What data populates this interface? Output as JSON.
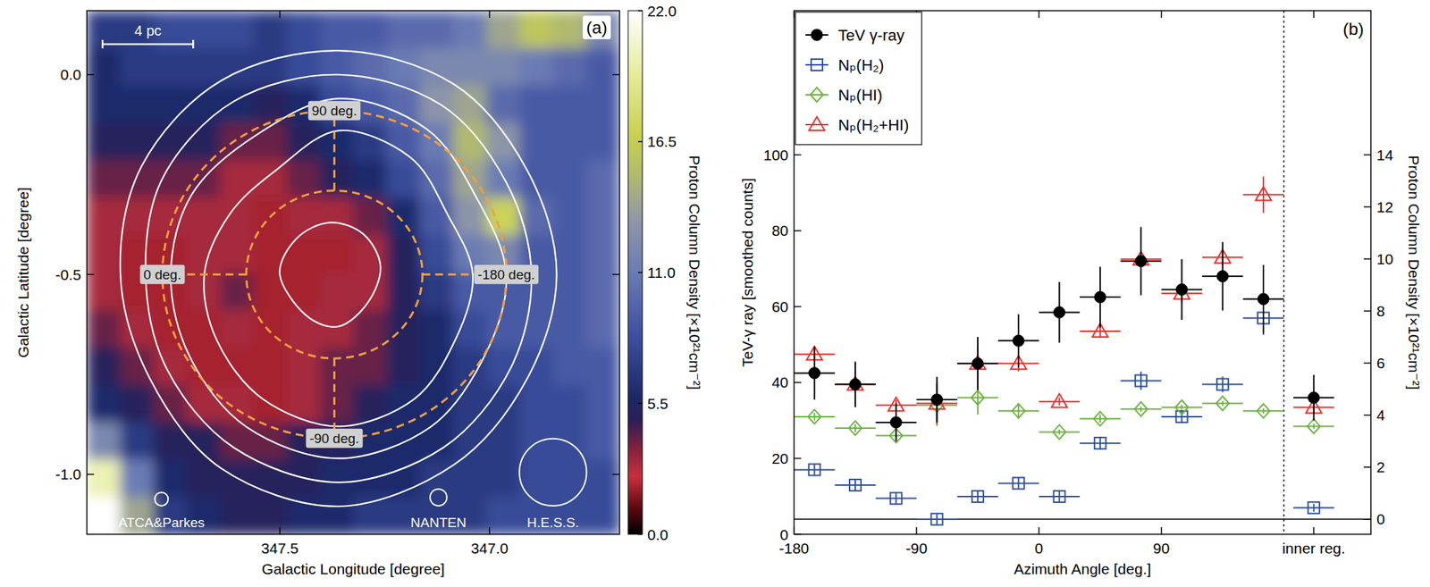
{
  "chart_data": [
    {
      "type": "heatmap",
      "panel_label": "(a)",
      "x_label": "Galactic Longitude [degree]",
      "y_label": "Galactic Latitude [degree]",
      "xlim": [
        347.96,
        346.69
      ],
      "ylim": [
        -1.15,
        0.16
      ],
      "xticks": [
        347.5,
        {
          "value": 347,
          "label": "347.0"
        }
      ],
      "yticks": [
        {
          "value": 0,
          "label": "0.0"
        },
        -0.5,
        {
          "value": -1,
          "label": "-1.0"
        }
      ],
      "cells": [
        [
          7,
          7,
          8,
          8,
          8,
          7,
          8,
          9,
          9,
          10,
          10,
          11,
          14,
          16,
          15,
          12
        ],
        [
          6,
          7,
          7,
          7,
          7,
          7,
          8,
          9,
          10,
          11,
          12,
          12,
          12,
          11,
          10,
          9
        ],
        [
          6,
          6,
          6,
          6,
          6,
          5,
          6,
          8,
          9,
          10,
          13,
          14,
          10,
          9,
          9,
          9
        ],
        [
          5,
          5,
          5,
          5,
          4,
          4,
          5,
          6,
          7,
          9,
          11,
          15,
          13,
          9,
          9,
          9
        ],
        [
          4,
          4,
          4,
          4,
          3,
          3,
          4,
          5,
          6,
          8,
          10,
          14,
          11,
          9,
          9,
          10
        ],
        [
          3,
          3,
          3,
          3,
          3,
          2,
          3,
          3,
          4,
          6,
          9,
          13,
          17,
          10,
          9,
          10
        ],
        [
          3,
          2,
          2,
          3,
          3,
          2,
          2,
          2,
          3,
          5,
          8,
          11,
          12,
          9,
          9,
          10
        ],
        [
          3,
          2,
          2,
          3,
          4,
          2,
          2,
          3,
          3,
          5,
          7,
          9,
          9,
          9,
          9,
          10
        ],
        [
          4,
          3,
          2,
          2,
          3,
          2,
          3,
          3,
          4,
          5,
          6,
          8,
          9,
          9,
          9,
          10
        ],
        [
          5,
          4,
          3,
          2,
          2,
          2,
          3,
          4,
          4,
          5,
          6,
          7,
          8,
          8,
          9,
          9
        ],
        [
          6,
          5,
          4,
          3,
          3,
          2,
          3,
          4,
          5,
          6,
          6,
          7,
          7,
          8,
          8,
          9
        ],
        [
          12,
          7,
          5,
          5,
          4,
          4,
          5,
          5,
          6,
          6,
          6,
          7,
          7,
          8,
          8,
          9
        ],
        [
          20,
          11,
          6,
          5,
          5,
          5,
          5,
          6,
          6,
          6,
          7,
          7,
          7,
          8,
          8,
          8
        ],
        [
          22,
          14,
          7,
          6,
          5,
          5,
          6,
          6,
          7,
          7,
          7,
          7,
          8,
          8,
          8,
          8
        ]
      ],
      "colorbar": {
        "label": "Proton Column Density [×10²¹cm⁻²]",
        "range": [
          0,
          22
        ],
        "ticks": [
          {
            "value": 0,
            "label": "0.0"
          },
          5.5,
          {
            "value": 11,
            "label": "11.0"
          },
          16.5,
          {
            "value": 22,
            "label": "22.0"
          }
        ]
      },
      "contours": [
        {
          "lon": [
            346.84,
            346.91,
            347.085,
            347.36,
            347.64,
            347.83,
            347.88,
            347.81,
            347.64,
            347.36,
            347.085,
            346.91
          ],
          "lat": [
            -0.5,
            -0.24,
            -0.024,
            0.06,
            -0.015,
            -0.23,
            -0.5,
            -0.76,
            -0.985,
            -1.08,
            -0.976,
            -0.76
          ]
        },
        {
          "lon": [
            346.9,
            346.96,
            347.115,
            347.36,
            347.61,
            347.78,
            347.82,
            347.77,
            347.61,
            347.36,
            347.11,
            346.95
          ],
          "lat": [
            -0.5,
            -0.27,
            -0.076,
            0.0,
            -0.067,
            -0.26,
            -0.5,
            -0.735,
            -0.933,
            -1.02,
            -0.933,
            -0.735
          ]
        },
        {
          "lon": [
            346.96,
            347.03,
            347.15,
            347.36,
            347.56,
            347.71,
            347.76,
            347.715,
            347.58,
            347.36,
            347.14,
            347.01
          ],
          "lat": [
            -0.5,
            -0.31,
            -0.136,
            -0.06,
            -0.154,
            -0.3,
            -0.5,
            -0.705,
            -0.881,
            -0.96,
            -0.881,
            -0.7
          ]
        },
        {
          "lon": [
            347.04,
            347.1,
            347.19,
            347.36,
            347.51,
            347.62,
            347.68,
            347.65,
            347.54,
            347.36,
            347.18,
            347.08
          ],
          "lat": [
            -0.5,
            -0.35,
            -0.206,
            -0.14,
            -0.24,
            -0.35,
            -0.5,
            -0.665,
            -0.812,
            -0.88,
            -0.812,
            -0.66
          ]
        },
        {
          "lon": [
            347.26,
            347.3,
            347.38,
            347.46,
            347.5,
            347.44,
            347.36,
            347.29
          ],
          "lat": [
            -0.48,
            -0.4,
            -0.37,
            -0.41,
            -0.5,
            -0.6,
            -0.63,
            -0.57
          ]
        }
      ],
      "circles": {
        "center": [
          347.37,
          -0.5
        ],
        "radii": [
          0.21,
          0.41
        ],
        "azimuths": [
          {
            "value": 90,
            "label": "90 deg."
          },
          {
            "value": 0,
            "label": "0 deg."
          },
          {
            "value": -180,
            "label": "-180 deg."
          },
          {
            "value": -90,
            "label": "-90 deg."
          }
        ]
      },
      "scale_bar": {
        "label": "4 pc",
        "length": 0.216
      },
      "beams": [
        {
          "label": "ATCA&Parkes",
          "radius": 0.016
        },
        {
          "label": "NANTEN",
          "radius": 0.02
        },
        {
          "label": "H.E.S.S.",
          "radius": 0.08
        }
      ]
    },
    {
      "type": "scatter",
      "panel_label": "(b)",
      "x_label": "Azimuth Angle [deg.]",
      "y_label": "TeV-γ ray [smoothed counts]",
      "y2_label": "Proton Column Density [×10²¹cm⁻²]",
      "xlim": [
        -180,
        244
      ],
      "xticks": [
        -180,
        -90,
        0,
        90,
        {
          "value": 202,
          "label": "inner reg."
        }
      ],
      "ylim": [
        0,
        138
      ],
      "yticks": [
        0,
        20,
        40,
        60,
        80,
        100
      ],
      "y2lim": [
        -0.58,
        19.54
      ],
      "y2ticks": [
        0,
        2,
        4,
        6,
        8,
        10,
        12,
        14
      ],
      "vlines": [
        180
      ],
      "hlines": [
        {
          "axis": "y2",
          "value": 0
        }
      ],
      "legend": "upper left",
      "x": [
        -165,
        -135,
        -105,
        -75,
        -45,
        -15,
        15,
        45,
        75,
        105,
        135,
        165,
        202
      ],
      "x_error": [
        15,
        15,
        15,
        15,
        15,
        15,
        15,
        15,
        15,
        15,
        15,
        15,
        15
      ],
      "series": [
        {
          "name": "Nₚ(H₂)",
          "color": "#2e4f9e",
          "marker": "open-square",
          "axis": "y2",
          "values": [
            1.9,
            1.31,
            0.8,
            0,
            0.87,
            1.38,
            0.87,
            2.92,
            5.32,
            3.94,
            5.18,
            7.73,
            0.44
          ],
          "errors": [
            0.2,
            0.2,
            0.2,
            0.2,
            0.2,
            0.2,
            0.2,
            0.25,
            0.35,
            0.25,
            0.3,
            0.65,
            0.15
          ]
        },
        {
          "name": "Nₚ(HI)",
          "color": "#6cb33f",
          "marker": "open-diamond",
          "axis": "y2",
          "values": [
            3.94,
            3.5,
            3.21,
            4.38,
            4.67,
            4.16,
            3.35,
            3.86,
            4.23,
            4.3,
            4.45,
            4.16,
            3.57
          ],
          "errors": [
            0.15,
            0.15,
            0.2,
            0.8,
            0.65,
            0.3,
            0.1,
            0.15,
            0.1,
            0.1,
            0.1,
            0.1,
            0.1
          ]
        },
        {
          "name": "Nₚ(H₂+HI)",
          "color": "#e8302a",
          "marker": "open-triangle",
          "axis": "y2",
          "values": [
            6.34,
            5.18,
            4.38,
            4.45,
            5.98,
            5.98,
            4.52,
            7.22,
            9.99,
            8.68,
            10.06,
            12.47,
            4.3
          ],
          "errors": [
            0.25,
            0.2,
            0.2,
            0.8,
            0.7,
            0.3,
            0.15,
            0.25,
            0.3,
            0.35,
            0.3,
            0.7,
            0.2
          ]
        },
        {
          "name": "TeV γ-ray",
          "color": "#000000",
          "marker": "circle",
          "values": [
            42.5,
            39.5,
            29.5,
            35.5,
            45,
            51,
            58.5,
            62.5,
            72,
            64.5,
            68,
            62,
            36
          ],
          "errors": [
            7,
            6,
            5,
            6,
            7,
            7,
            8,
            8,
            9,
            8,
            9,
            9,
            6
          ]
        }
      ]
    }
  ]
}
